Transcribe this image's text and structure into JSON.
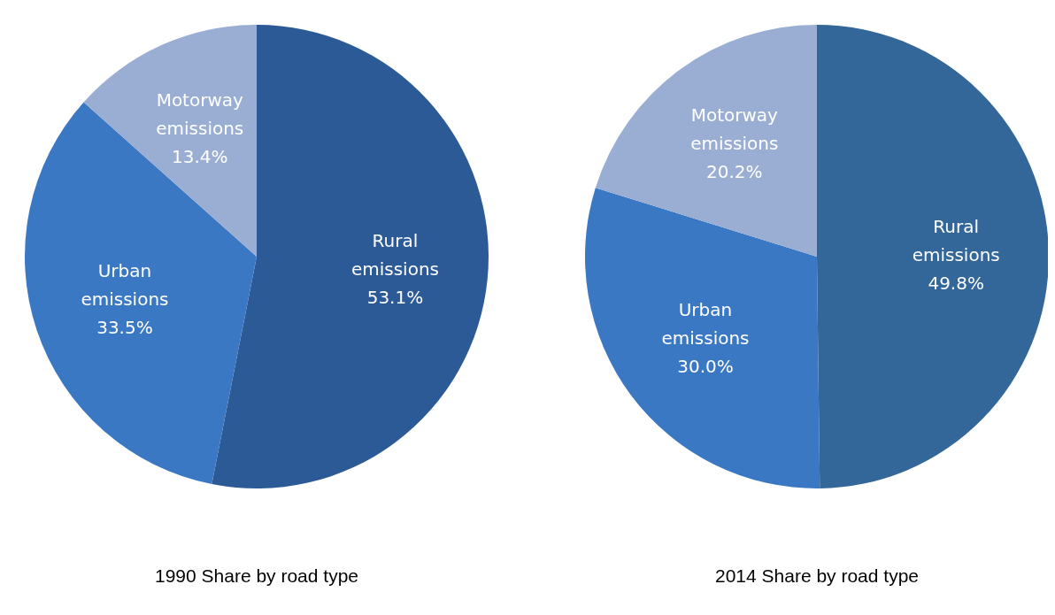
{
  "chart_data": [
    {
      "type": "pie",
      "title": "1990 Share by road type",
      "categories": [
        "Rural emissions",
        "Urban emissions",
        "Motorway emissions"
      ],
      "values": [
        53.1,
        33.5,
        13.4
      ],
      "colors": [
        "#2c5a96",
        "#3a78c4",
        "#9aaed4"
      ],
      "value_labels": [
        "53.1%",
        "33.5%",
        "13.4%"
      ]
    },
    {
      "type": "pie",
      "title": "2014 Share by road type",
      "categories": [
        "Rural emissions",
        "Urban emissions",
        "Motorway emissions"
      ],
      "values": [
        49.8,
        30.0,
        20.2
      ],
      "colors": [
        "#336699",
        "#3a78c4",
        "#9aaed4"
      ],
      "value_labels": [
        "49.8%",
        "30.0%",
        "20.2%"
      ]
    }
  ]
}
